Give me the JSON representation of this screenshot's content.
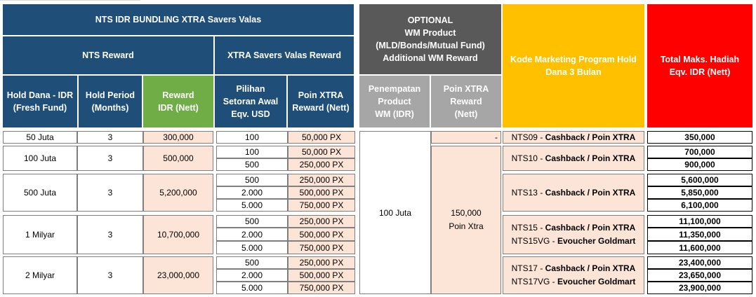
{
  "header": {
    "main_title": "NTS IDR BUNDLING XTRA Savers Valas",
    "nts_reward": "NTS Reward",
    "xtra_reward": "XTRA Savers Valas Reward",
    "optional": "OPTIONAL\nWM Product\n(MLD/Bonds/Mutual Fund)\nAdditional WM Reward",
    "kode": "Kode Marketing Program Hold\nDana 3 Bulan",
    "total": "Total Maks. Hadiah\nEqv. IDR (Nett)",
    "hold_dana": "Hold Dana - IDR\n(Fresh Fund)",
    "hold_period": "Hold Period\n(Months)",
    "reward_idr": "Reward\nIDR (Nett)",
    "pilihan": "Pilihan\nSetoran Awal\nEqv. USD",
    "poin_xtra": "Poin XTRA\nReward (Nett)",
    "penempatan": "Penempatan\nProduct\nWM (IDR)",
    "poin_xtra_reward": "Poin XTRA\nReward\n(Nett)"
  },
  "groups": [
    {
      "hold_dana": "50 Juta",
      "period": "3",
      "reward": "300,000",
      "options": [
        {
          "usd": "100",
          "px": "50,000 PX"
        }
      ],
      "wm_reward": "-",
      "codes": [
        {
          "code": "NTS09",
          "desc": "Cashback / Poin XTRA"
        }
      ],
      "totals": [
        "350,000"
      ]
    },
    {
      "hold_dana": "100 Juta",
      "period": "3",
      "reward": "500,000",
      "options": [
        {
          "usd": "100",
          "px": "50,000 PX"
        },
        {
          "usd": "500",
          "px": "250,000 PX"
        }
      ],
      "codes": [
        {
          "code": "NTS10",
          "desc": "Cashback / Poin XTRA"
        }
      ],
      "totals": [
        "700,000",
        "900,000"
      ]
    },
    {
      "hold_dana": "500 Juta",
      "period": "3",
      "reward": "5,200,000",
      "options": [
        {
          "usd": "500",
          "px": "250,000 PX"
        },
        {
          "usd": "2.000",
          "px": "500,000 PX"
        },
        {
          "usd": "5.000",
          "px": "750,000 PX"
        }
      ],
      "codes": [
        {
          "code": "NTS13",
          "desc": "Cashback / Poin XTRA"
        }
      ],
      "totals": [
        "5,600,000",
        "5,850,000",
        "6,100,000"
      ]
    },
    {
      "hold_dana": "1 Milyar",
      "period": "3",
      "reward": "10,700,000",
      "options": [
        {
          "usd": "500",
          "px": "250,000 PX"
        },
        {
          "usd": "2.000",
          "px": "500,000 PX"
        },
        {
          "usd": "5.000",
          "px": "750,000 PX"
        }
      ],
      "codes": [
        {
          "code": "NTS15",
          "desc": "Cashback / Poin XTRA"
        },
        {
          "code": "NTS15VG",
          "desc": "Evoucher Goldmart"
        }
      ],
      "totals": [
        "11,100,000",
        "11,350,000",
        "11,600,000"
      ]
    },
    {
      "hold_dana": "2 Milyar",
      "period": "3",
      "reward": "23,000,000",
      "options": [
        {
          "usd": "500",
          "px": "250,000 PX"
        },
        {
          "usd": "2.000",
          "px": "500,000 PX"
        },
        {
          "usd": "5.000",
          "px": "750,000 PX"
        }
      ],
      "codes": [
        {
          "code": "NTS17",
          "desc": "Cashback / Poin XTRA"
        },
        {
          "code": "NTS17VG",
          "desc": "Evoucher Goldmart"
        }
      ],
      "totals": [
        "23,400,000",
        "23,650,000",
        "23,900,000"
      ]
    }
  ],
  "wm_product": "100 Juta",
  "wm_reward_merged": "150,000\nPoin Xtra"
}
